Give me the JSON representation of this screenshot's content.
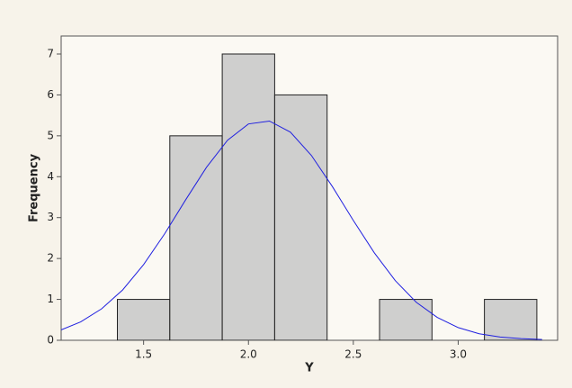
{
  "chart_data": {
    "type": "histogram",
    "x_label": "Y",
    "y_label": "Frequency",
    "bins": [
      1.375,
      1.625,
      1.875,
      2.125,
      2.375,
      2.625,
      2.875,
      3.125,
      3.375
    ],
    "values": [
      1,
      5,
      7,
      6,
      0,
      1,
      0,
      1
    ],
    "color": "#c4c4c4",
    "fit": {
      "color": "#2020e0",
      "x": [
        1.1,
        1.2,
        1.3,
        1.4,
        1.5,
        1.6,
        1.7,
        1.8,
        1.9,
        2.0,
        2.1,
        2.2,
        2.3,
        2.4,
        2.5,
        2.6,
        2.7,
        2.8,
        2.9,
        3.0,
        3.1,
        3.2,
        3.3,
        3.4
      ],
      "values": [
        0.24,
        0.45,
        0.77,
        1.23,
        1.85,
        2.6,
        3.43,
        4.23,
        4.89,
        5.29,
        5.36,
        5.09,
        4.52,
        3.76,
        2.93,
        2.14,
        1.46,
        0.93,
        0.56,
        0.31,
        0.16,
        0.08,
        0.04,
        0.02
      ]
    },
    "xlim": [
      1.107,
      3.474
    ],
    "ylim": [
      0,
      7.44
    ],
    "xticks": [
      1.5,
      {
        "value": 2,
        "label": "2.0"
      },
      2.5,
      {
        "value": 3,
        "label": "3.0"
      }
    ],
    "yticks": [
      0,
      1,
      2,
      3,
      4,
      5,
      6,
      7
    ]
  }
}
